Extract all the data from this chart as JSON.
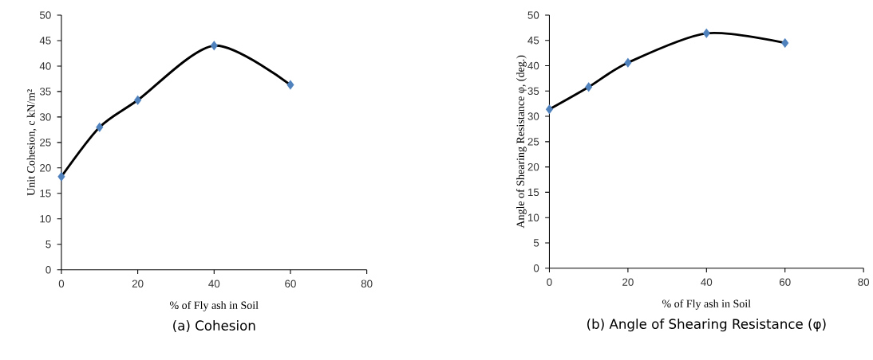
{
  "chart_data": [
    {
      "type": "line",
      "title": "(a)  Cohesion",
      "xlabel": "% of Fly ash in Soil",
      "ylabel": "Unit Cohesion, c kN/m²",
      "x": [
        0,
        10,
        20,
        40,
        60
      ],
      "series": [
        {
          "color": "#4f81bd",
          "values": [
            18.3,
            28.0,
            33.3,
            44.0,
            36.3
          ]
        }
      ],
      "xlim": [
        0,
        80
      ],
      "xticks": [
        0,
        20,
        40,
        60,
        80
      ],
      "ylim": [
        0,
        50
      ],
      "yticks": [
        0,
        5,
        10,
        15,
        20,
        25,
        30,
        35,
        40,
        45,
        50
      ],
      "marker": "diamond",
      "grid": false
    },
    {
      "type": "line",
      "title": "(b) Angle of Shearing Resistance (φ)",
      "xlabel": "% of Fly ash in Soil",
      "ylabel": "Angle of Shearing Resistance φ, (deg.)",
      "x": [
        0,
        10,
        20,
        40,
        60
      ],
      "series": [
        {
          "color": "#4f81bd",
          "values": [
            31.4,
            35.8,
            40.6,
            46.4,
            44.5
          ]
        }
      ],
      "xlim": [
        0,
        80
      ],
      "xticks": [
        0,
        20,
        40,
        60,
        80
      ],
      "ylim": [
        0,
        50
      ],
      "yticks": [
        0,
        5,
        10,
        15,
        20,
        25,
        30,
        35,
        40,
        45,
        50
      ],
      "marker": "diamond",
      "grid": false
    }
  ]
}
